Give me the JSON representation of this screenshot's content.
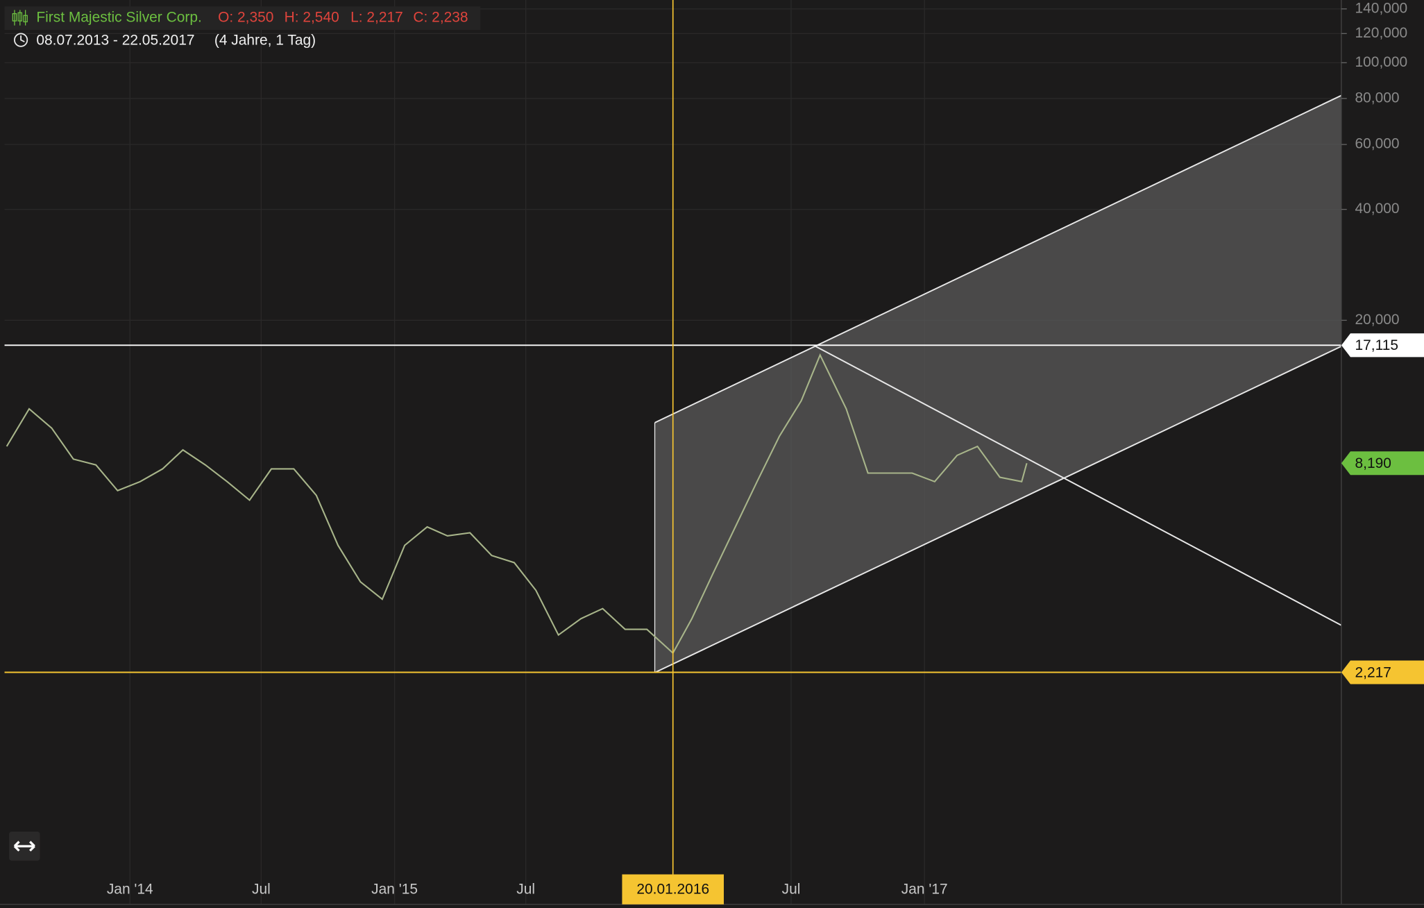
{
  "header": {
    "symbol": "First Majestic Silver Corp.",
    "open": "O: 2,350",
    "high": "H: 2,540",
    "low": "L: 2,217",
    "close": "C: 2,238",
    "range": "08.07.2013 - 22.05.2017",
    "duration": "(4 Jahre, 1 Tag)"
  },
  "chart_data": {
    "type": "line",
    "log_scale": true,
    "grid": true,
    "color": "#a8b58a",
    "x": [
      "2013-07-15",
      "2013-08-15",
      "2013-09-15",
      "2013-10-15",
      "2013-11-15",
      "2013-12-15",
      "2014-01-15",
      "2014-02-15",
      "2014-03-15",
      "2014-04-15",
      "2014-05-15",
      "2014-06-15",
      "2014-07-15",
      "2014-08-15",
      "2014-09-15",
      "2014-10-15",
      "2014-11-15",
      "2014-12-15",
      "2015-01-15",
      "2015-02-15",
      "2015-03-15",
      "2015-04-15",
      "2015-05-15",
      "2015-06-15",
      "2015-07-15",
      "2015-08-15",
      "2015-09-15",
      "2015-10-15",
      "2015-11-15",
      "2015-12-15",
      "2016-01-20",
      "2016-02-15",
      "2016-03-15",
      "2016-04-15",
      "2016-05-15",
      "2016-06-15",
      "2016-07-15",
      "2016-08-10",
      "2016-09-15",
      "2016-10-15",
      "2016-11-15",
      "2016-12-15",
      "2017-01-15",
      "2017-02-15",
      "2017-03-15",
      "2017-04-15",
      "2017-05-15",
      "2017-05-22"
    ],
    "values": [
      9.1,
      11.5,
      10.2,
      8.4,
      8.1,
      6.9,
      7.3,
      7.9,
      8.9,
      8.1,
      7.3,
      6.5,
      7.9,
      7.9,
      6.7,
      4.9,
      3.9,
      3.5,
      4.9,
      5.5,
      5.2,
      5.3,
      4.6,
      4.4,
      3.7,
      2.8,
      3.1,
      3.3,
      2.9,
      2.9,
      2.5,
      3.1,
      4.1,
      5.5,
      7.3,
      9.7,
      12.1,
      16.1,
      11.5,
      7.7,
      7.7,
      7.7,
      7.3,
      8.6,
      9.1,
      7.5,
      7.3,
      8.19
    ],
    "xlim": [
      "2013-07-12",
      "2018-07-30"
    ],
    "xticks": [
      {
        "value": "2014-01-01",
        "label": "Jan '14"
      },
      {
        "value": "2014-07-01",
        "label": "Jul"
      },
      {
        "value": "2015-01-01",
        "label": "Jan '15"
      },
      {
        "value": "2015-07-01",
        "label": "Jul"
      },
      {
        "value": "2016-07-01",
        "label": "Jul"
      },
      {
        "value": "2017-01-01",
        "label": "Jan '17"
      }
    ],
    "ylim": [
      0.52,
      148
    ],
    "yticks": [
      {
        "value": 140,
        "label": "140,000"
      },
      {
        "value": 120,
        "label": "120,000"
      },
      {
        "value": 100,
        "label": "100,000"
      },
      {
        "value": 80,
        "label": "80,000"
      },
      {
        "value": 60,
        "label": "60,000"
      },
      {
        "value": 40,
        "label": "40,000"
      },
      {
        "value": 20,
        "label": "20,000"
      }
    ],
    "marker": {
      "value": "2016-01-20",
      "label": "20.01.2016",
      "color": "#f5c431"
    },
    "levels": [
      {
        "value": 17.115,
        "label": "17,115",
        "color": "#ffffff",
        "line": true
      },
      {
        "value": 8.19,
        "label": "8,190",
        "color": "#6cbf40",
        "line": false
      },
      {
        "value": 2.217,
        "label": "2,217",
        "color": "#f5c431",
        "line": true
      }
    ]
  }
}
